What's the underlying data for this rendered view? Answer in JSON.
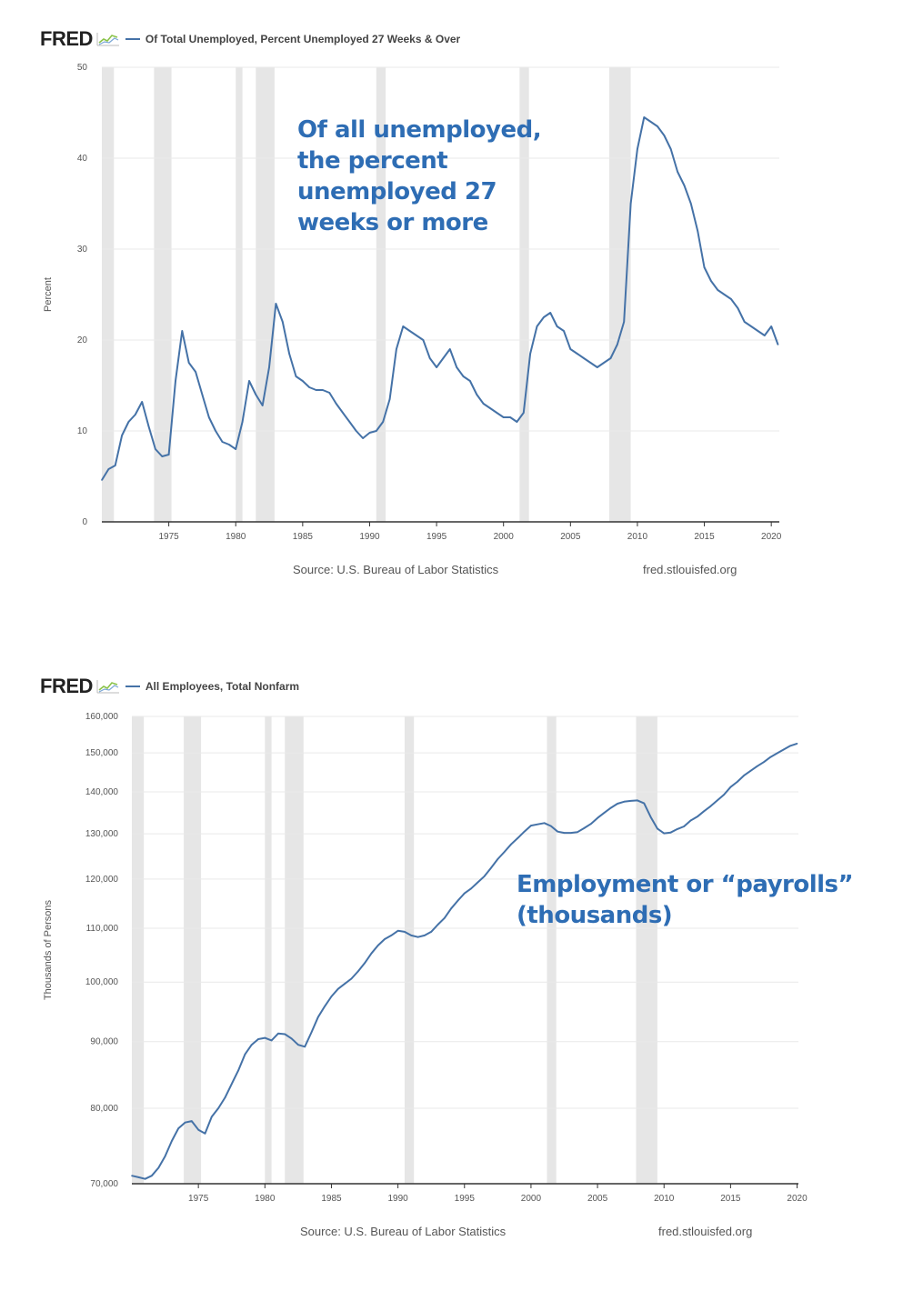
{
  "brand": {
    "logo_text": "FRED",
    "logo_icon": "chart-line-icon"
  },
  "colors": {
    "series": "#4572a7",
    "recession": "#e6e6e6",
    "grid": "#e9e9e9",
    "annotation": "#2e6db4"
  },
  "recessions": [
    [
      1969.9,
      1970.9
    ],
    [
      1973.9,
      1975.2
    ],
    [
      1980.0,
      1980.5
    ],
    [
      1981.5,
      1982.9
    ],
    [
      1990.5,
      1991.2
    ],
    [
      2001.2,
      2001.9
    ],
    [
      2007.9,
      2009.5
    ]
  ],
  "charts": [
    {
      "legend": "Of Total Unemployed, Percent Unemployed 27 Weeks & Over",
      "annotation": [
        "Of all unemployed,",
        "the percent",
        "unemployed 27",
        "weeks or more"
      ],
      "source": "Source: U.S. Bureau of Labor Statistics",
      "site": "fred.stlouisfed.org"
    },
    {
      "legend": "All Employees, Total Nonfarm",
      "annotation": [
        "Employment or  “payrolls”",
        "(thousands)"
      ],
      "source": "Source: U.S. Bureau of Labor Statistics",
      "site": "fred.stlouisfed.org"
    }
  ],
  "chart_data": [
    {
      "type": "line",
      "title": "Of Total Unemployed, Percent Unemployed 27 Weeks & Over",
      "ylabel": "Percent",
      "xlabel": "",
      "xlim": [
        1970,
        2020.6
      ],
      "ylim": [
        0,
        50
      ],
      "yticks": [
        0,
        10,
        20,
        30,
        40,
        50
      ],
      "ytick_labels": [
        "0",
        "10",
        "20",
        "30",
        "40",
        "50"
      ],
      "xticks": [
        1975,
        1980,
        1985,
        1990,
        1995,
        2000,
        2005,
        2010,
        2015,
        2020
      ],
      "xtick_labels": [
        "1975",
        "1980",
        "1985",
        "1990",
        "1995",
        "2000",
        "2005",
        "2010",
        "2015",
        "2020"
      ],
      "grid": true,
      "series": [
        {
          "x": [
            1970.0,
            1970.5,
            1971.0,
            1971.5,
            1972.0,
            1972.5,
            1973.0,
            1973.5,
            1974.0,
            1974.5,
            1975.0,
            1975.5,
            1976.0,
            1976.5,
            1977.0,
            1977.5,
            1978.0,
            1978.5,
            1979.0,
            1979.5,
            1980.0,
            1980.5,
            1981.0,
            1981.5,
            1982.0,
            1982.5,
            1983.0,
            1983.5,
            1984.0,
            1984.5,
            1985.0,
            1985.5,
            1986.0,
            1986.5,
            1987.0,
            1987.5,
            1988.0,
            1988.5,
            1989.0,
            1989.5,
            1990.0,
            1990.5,
            1991.0,
            1991.5,
            1992.0,
            1992.5,
            1993.0,
            1993.5,
            1994.0,
            1994.5,
            1995.0,
            1995.5,
            1996.0,
            1996.5,
            1997.0,
            1997.5,
            1998.0,
            1998.5,
            1999.0,
            1999.5,
            2000.0,
            2000.5,
            2001.0,
            2001.5,
            2002.0,
            2002.5,
            2003.0,
            2003.5,
            2004.0,
            2004.5,
            2005.0,
            2005.5,
            2006.0,
            2006.5,
            2007.0,
            2007.5,
            2008.0,
            2008.5,
            2009.0,
            2009.5,
            2010.0,
            2010.5,
            2011.0,
            2011.5,
            2012.0,
            2012.5,
            2013.0,
            2013.5,
            2014.0,
            2014.5,
            2015.0,
            2015.5,
            2016.0,
            2016.5,
            2017.0,
            2017.5,
            2018.0,
            2018.5,
            2019.0,
            2019.5,
            2020.0,
            2020.5
          ],
          "values": [
            4.6,
            5.8,
            6.2,
            9.5,
            11.0,
            11.8,
            13.2,
            10.5,
            8.0,
            7.2,
            7.4,
            15.5,
            21.0,
            17.5,
            16.5,
            14.0,
            11.5,
            10.0,
            8.8,
            8.5,
            8.0,
            11.0,
            15.5,
            14.0,
            12.8,
            17.0,
            24.0,
            22.0,
            18.5,
            16.0,
            15.5,
            14.8,
            14.5,
            14.5,
            14.2,
            13.0,
            12.0,
            11.0,
            10.0,
            9.2,
            9.8,
            10.0,
            11.0,
            13.5,
            19.0,
            21.5,
            21.0,
            20.5,
            20.0,
            18.0,
            17.0,
            18.0,
            19.0,
            17.0,
            16.0,
            15.5,
            14.0,
            13.0,
            12.5,
            12.0,
            11.5,
            11.5,
            11.0,
            12.0,
            18.5,
            21.5,
            22.5,
            23.0,
            21.5,
            21.0,
            19.0,
            18.5,
            18.0,
            17.5,
            17.0,
            17.5,
            18.0,
            19.5,
            22.0,
            35.0,
            41.0,
            44.5,
            44.0,
            43.5,
            42.5,
            41.0,
            38.5,
            37.0,
            35.0,
            32.0,
            28.0,
            26.5,
            25.5,
            25.0,
            24.5,
            23.5,
            22.0,
            21.5,
            21.0,
            20.5,
            21.5,
            19.5
          ]
        }
      ]
    },
    {
      "type": "line",
      "title": "All Employees, Total Nonfarm",
      "ylabel": "Thousands of Persons",
      "xlabel": "",
      "yscale": "log",
      "xlim": [
        1970,
        2020.1
      ],
      "ylim": [
        70000,
        160000
      ],
      "yticks": [
        70000,
        80000,
        90000,
        100000,
        110000,
        120000,
        130000,
        140000,
        150000,
        160000
      ],
      "ytick_labels": [
        "70,000",
        "80,000",
        "90,000",
        "100,000",
        "110,000",
        "120,000",
        "130,000",
        "140,000",
        "150,000",
        "160,000"
      ],
      "xticks": [
        1975,
        1980,
        1985,
        1990,
        1995,
        2000,
        2005,
        2010,
        2015,
        2020
      ],
      "xtick_labels": [
        "1975",
        "1980",
        "1985",
        "1990",
        "1995",
        "2000",
        "2005",
        "2010",
        "2015",
        "2020"
      ],
      "grid": true,
      "series": [
        {
          "x": [
            1970.0,
            1970.5,
            1971.0,
            1971.5,
            1972.0,
            1972.5,
            1973.0,
            1973.5,
            1974.0,
            1974.5,
            1975.0,
            1975.5,
            1976.0,
            1976.5,
            1977.0,
            1977.5,
            1978.0,
            1978.5,
            1979.0,
            1979.5,
            1980.0,
            1980.5,
            1981.0,
            1981.5,
            1982.0,
            1982.5,
            1983.0,
            1983.5,
            1984.0,
            1984.5,
            1985.0,
            1985.5,
            1986.0,
            1986.5,
            1987.0,
            1987.5,
            1988.0,
            1988.5,
            1989.0,
            1989.5,
            1990.0,
            1990.5,
            1991.0,
            1991.5,
            1992.0,
            1992.5,
            1993.0,
            1993.5,
            1994.0,
            1994.5,
            1995.0,
            1995.5,
            1996.0,
            1996.5,
            1997.0,
            1997.5,
            1998.0,
            1998.5,
            1999.0,
            1999.5,
            2000.0,
            2000.5,
            2001.0,
            2001.5,
            2002.0,
            2002.5,
            2003.0,
            2003.5,
            2004.0,
            2004.5,
            2005.0,
            2005.5,
            2006.0,
            2006.5,
            2007.0,
            2007.5,
            2008.0,
            2008.5,
            2009.0,
            2009.5,
            2010.0,
            2010.5,
            2011.0,
            2011.5,
            2012.0,
            2012.5,
            2013.0,
            2013.5,
            2014.0,
            2014.5,
            2015.0,
            2015.5,
            2016.0,
            2016.5,
            2017.0,
            2017.5,
            2018.0,
            2018.5,
            2019.0,
            2019.5,
            2020.0
          ],
          "values": [
            71000,
            70800,
            70600,
            71000,
            72000,
            73500,
            75500,
            77200,
            78000,
            78200,
            77000,
            76500,
            78800,
            80000,
            81500,
            83500,
            85500,
            88000,
            89500,
            90400,
            90600,
            90200,
            91300,
            91200,
            90500,
            89500,
            89200,
            91500,
            94000,
            95800,
            97500,
            98800,
            99700,
            100600,
            101900,
            103400,
            105200,
            106700,
            107900,
            108600,
            109500,
            109300,
            108600,
            108300,
            108600,
            109300,
            110700,
            112000,
            113900,
            115500,
            117000,
            118000,
            119300,
            120600,
            122400,
            124300,
            125900,
            127600,
            129000,
            130500,
            131900,
            132200,
            132500,
            131800,
            130500,
            130200,
            130200,
            130400,
            131300,
            132300,
            133700,
            134900,
            136100,
            137100,
            137600,
            137800,
            137900,
            137200,
            133900,
            131200,
            130100,
            130300,
            131100,
            131700,
            133100,
            134000,
            135300,
            136500,
            137900,
            139300,
            141200,
            142500,
            144100,
            145300,
            146500,
            147600,
            148900,
            149900,
            150900,
            151900,
            152500
          ]
        }
      ]
    }
  ]
}
